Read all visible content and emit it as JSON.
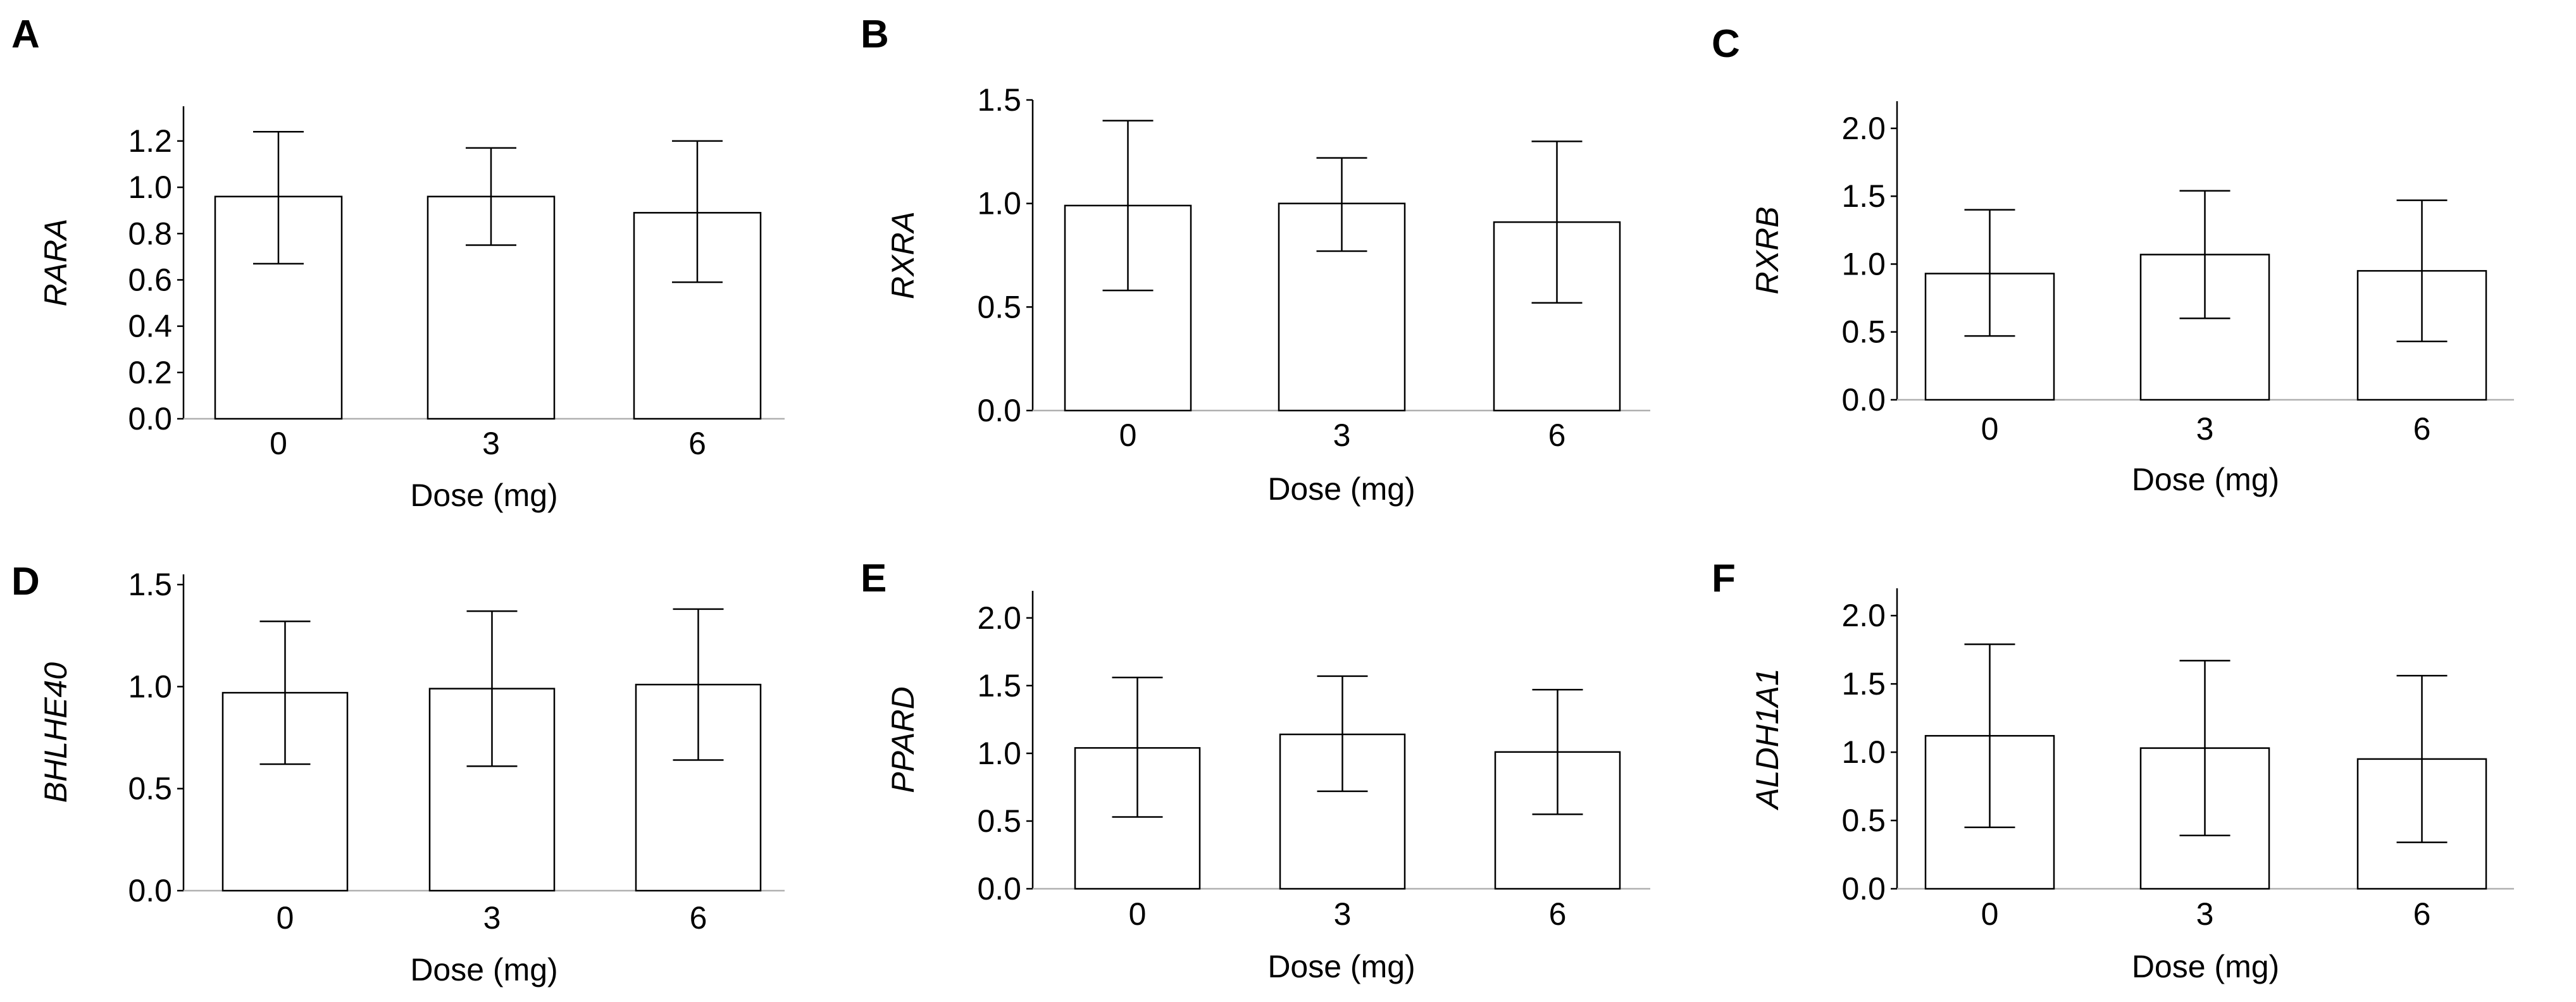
{
  "figure": {
    "xlabel": "Dose (mg)"
  },
  "chart_data": [
    {
      "type": "bar",
      "panel": "A",
      "ylabel": "RARA",
      "xlabel": "Dose (mg)",
      "categories": [
        "0",
        "3",
        "6"
      ],
      "values": [
        0.96,
        0.96,
        0.89
      ],
      "error_low": [
        0.67,
        0.75,
        0.59
      ],
      "error_high": [
        1.24,
        1.17,
        1.2
      ],
      "ylim": [
        0,
        1.35
      ],
      "yticks": [
        0.0,
        0.2,
        0.4,
        0.6,
        0.8,
        1.0,
        1.2
      ],
      "ytick_labels": [
        "0.0",
        "0.2",
        "0.4",
        "0.6",
        "0.8",
        "1.0",
        "1.2"
      ]
    },
    {
      "type": "bar",
      "panel": "B",
      "ylabel": "RXRA",
      "xlabel": "Dose (mg)",
      "categories": [
        "0",
        "3",
        "6"
      ],
      "values": [
        0.99,
        1.0,
        0.91
      ],
      "error_low": [
        0.58,
        0.77,
        0.52
      ],
      "error_high": [
        1.4,
        1.22,
        1.3
      ],
      "ylim": [
        0,
        1.5
      ],
      "yticks": [
        0.0,
        0.5,
        1.0,
        1.5
      ],
      "ytick_labels": [
        "0.0",
        "0.5",
        "1.0",
        "1.5"
      ]
    },
    {
      "type": "bar",
      "panel": "C",
      "ylabel": "RXRB",
      "xlabel": "Dose (mg)",
      "categories": [
        "0",
        "3",
        "6"
      ],
      "values": [
        0.93,
        1.07,
        0.95
      ],
      "error_low": [
        0.47,
        0.6,
        0.43
      ],
      "error_high": [
        1.4,
        1.54,
        1.47
      ],
      "ylim": [
        0,
        2.2
      ],
      "yticks": [
        0.0,
        0.5,
        1.0,
        1.5,
        2.0
      ],
      "ytick_labels": [
        "0.0",
        "0.5",
        "1.0",
        "1.5",
        "2.0"
      ]
    },
    {
      "type": "bar",
      "panel": "D",
      "ylabel": "BHLHE40",
      "xlabel": "Dose (mg)",
      "categories": [
        "0",
        "3",
        "6"
      ],
      "values": [
        0.97,
        0.99,
        1.01
      ],
      "error_low": [
        0.62,
        0.61,
        0.64
      ],
      "error_high": [
        1.32,
        1.37,
        1.38
      ],
      "ylim": [
        0,
        1.55
      ],
      "yticks": [
        0.0,
        0.5,
        1.0,
        1.5
      ],
      "ytick_labels": [
        "0.0",
        "0.5",
        "1.0",
        "1.5"
      ]
    },
    {
      "type": "bar",
      "panel": "E",
      "ylabel": "PPARD",
      "xlabel": "Dose (mg)",
      "categories": [
        "0",
        "3",
        "6"
      ],
      "values": [
        1.04,
        1.14,
        1.01
      ],
      "error_low": [
        0.53,
        0.72,
        0.55
      ],
      "error_high": [
        1.56,
        1.57,
        1.47
      ],
      "ylim": [
        0,
        2.2
      ],
      "yticks": [
        0.0,
        0.5,
        1.0,
        1.5,
        2.0
      ],
      "ytick_labels": [
        "0.0",
        "0.5",
        "1.0",
        "1.5",
        "2.0"
      ]
    },
    {
      "type": "bar",
      "panel": "F",
      "ylabel": "ALDH1A1",
      "xlabel": "Dose (mg)",
      "categories": [
        "0",
        "3",
        "6"
      ],
      "values": [
        1.12,
        1.03,
        0.95
      ],
      "error_low": [
        0.45,
        0.39,
        0.34
      ],
      "error_high": [
        1.79,
        1.67,
        1.56
      ],
      "ylim": [
        0,
        2.2
      ],
      "yticks": [
        0.0,
        0.5,
        1.0,
        1.5,
        2.0
      ],
      "ytick_labels": [
        "0.0",
        "0.5",
        "1.0",
        "1.5",
        "2.0"
      ]
    }
  ]
}
